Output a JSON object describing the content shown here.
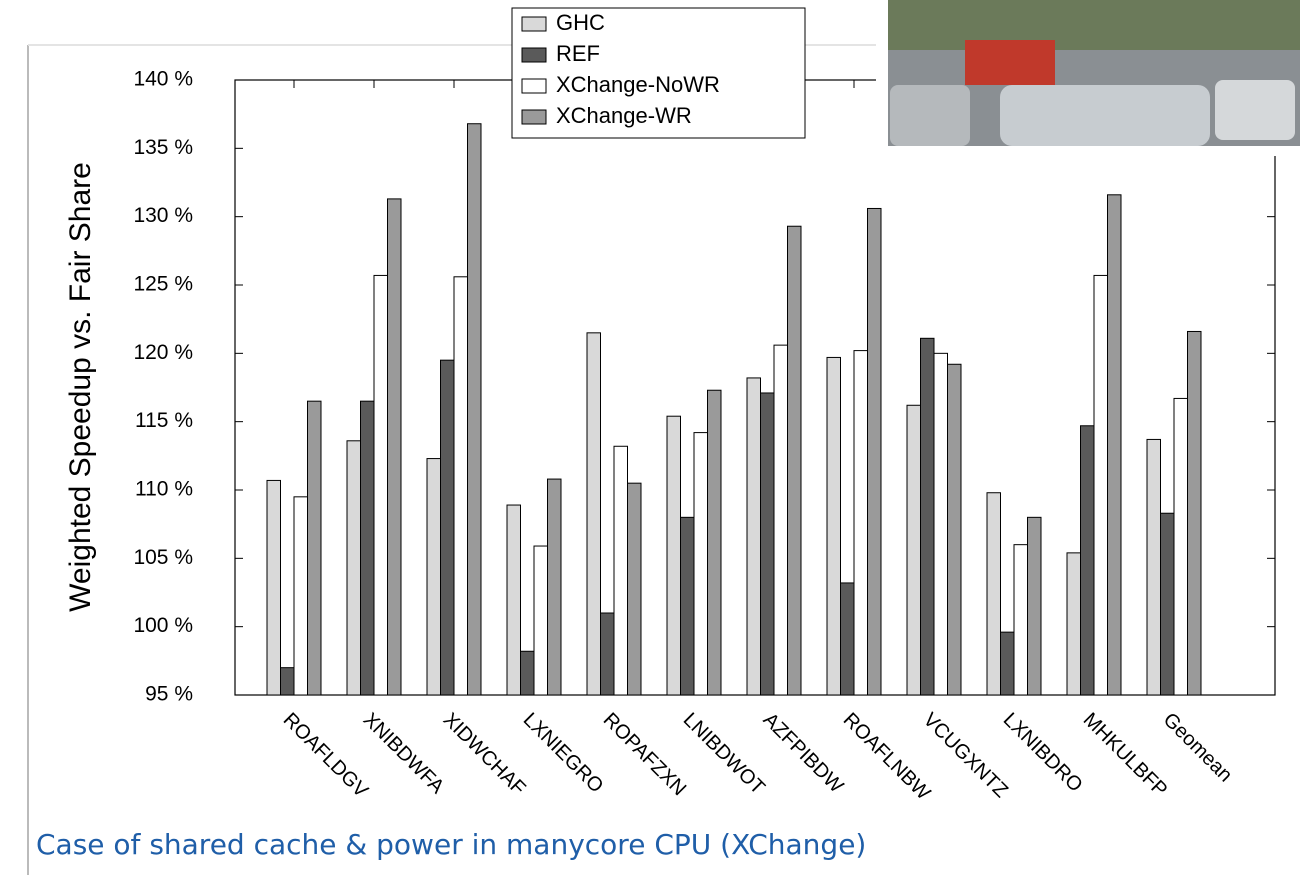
{
  "chart_data": {
    "type": "bar",
    "ylabel": "Weighted Speedup vs. Fair Share",
    "caption": "Case of shared cache & power in manycore CPU (XChange)",
    "categories": [
      "ROAFLDGV",
      "XNIBDWFA",
      "XIDWCHAF",
      "LXNIEGRO",
      "ROPAFZXN",
      "LNIBDWOT",
      "AZFPIBDW",
      "ROAFLNBW",
      "VCUGXNTZ",
      "LXNIBDRO",
      "MHKULBFP",
      "Geomean"
    ],
    "series": [
      {
        "name": "GHC",
        "color": "#d9d9d9",
        "values": [
          110.7,
          113.6,
          112.3,
          108.9,
          121.5,
          115.4,
          118.2,
          119.7,
          116.2,
          109.8,
          105.4,
          113.7
        ]
      },
      {
        "name": "REF",
        "color": "#5a5a5a",
        "values": [
          97.0,
          116.5,
          119.5,
          98.2,
          101.0,
          108.0,
          117.1,
          103.2,
          121.1,
          99.6,
          114.7,
          108.3
        ]
      },
      {
        "name": "XChange-NoWR",
        "color": "#ffffff",
        "values": [
          109.5,
          125.7,
          125.6,
          105.9,
          113.2,
          114.2,
          120.6,
          120.2,
          120.0,
          106.0,
          125.7,
          116.7
        ]
      },
      {
        "name": "XChange-WR",
        "color": "#9a9a9a",
        "values": [
          116.5,
          131.3,
          136.8,
          110.8,
          110.5,
          117.3,
          129.3,
          130.6,
          119.2,
          108.0,
          131.6,
          121.6
        ]
      }
    ],
    "ylim": [
      95,
      140
    ],
    "yticks": [
      {
        "value": 95,
        "label": "95 %"
      },
      {
        "value": 100,
        "label": "100 %"
      },
      {
        "value": 105,
        "label": "105 %"
      },
      {
        "value": 110,
        "label": "110 %"
      },
      {
        "value": 115,
        "label": "115 %"
      },
      {
        "value": 120,
        "label": "120 %"
      },
      {
        "value": 125,
        "label": "125 %"
      },
      {
        "value": 130,
        "label": "130 %"
      },
      {
        "value": 135,
        "label": "135 %"
      },
      {
        "value": 140,
        "label": "140 %"
      }
    ]
  }
}
